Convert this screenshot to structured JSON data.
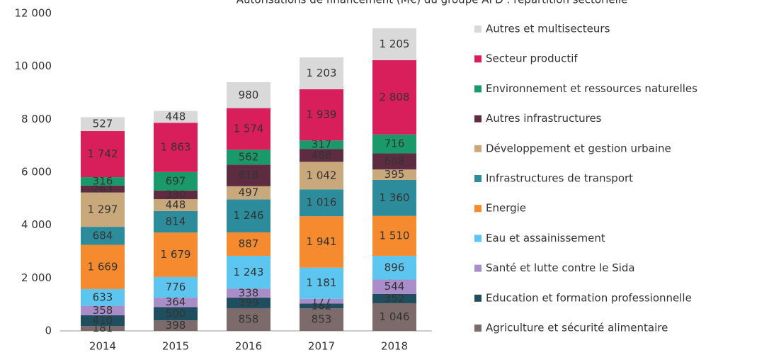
{
  "chart_data": {
    "type": "stacked_bar",
    "title": "Autorisations de financement (M€) du groupe AFD : répartition sectorielle",
    "categories": [
      "2014",
      "2015",
      "2016",
      "2017",
      "2018"
    ],
    "ylim": [
      0,
      12000
    ],
    "yticks": [
      0,
      {
        "value": 2000,
        "label": "2 000"
      },
      {
        "value": 4000,
        "label": "4 000"
      },
      {
        "value": 6000,
        "label": "6 000"
      },
      {
        "value": 8000,
        "label": "8 000"
      },
      {
        "value": 10000,
        "label": "10 000"
      },
      {
        "value": 12000,
        "label": "12 000"
      }
    ],
    "grid": false,
    "series": [
      {
        "name": "Agriculture et sécurité alimentaire",
        "color": "#7d6b6b",
        "values": [
          181,
          398,
          858,
          853,
          1046
        ],
        "value_labels": [
          "181",
          "398",
          "858",
          "853",
          "1 046"
        ]
      },
      {
        "name": "Education et formation professionnelle",
        "color": "#1f4e5f",
        "values": [
          410,
          500,
          399,
          182,
          352
        ],
        "value_labels": [
          "410",
          "500",
          "399",
          "182",
          "352"
        ]
      },
      {
        "name": "Santé et lutte contre le Sida",
        "color": "#a88dc8",
        "values": [
          358,
          364,
          338,
          177,
          544
        ],
        "value_labels": [
          "358",
          "364",
          "338",
          "177",
          "544"
        ]
      },
      {
        "name": "Eau et assainissement",
        "color": "#5cc6f0",
        "values": [
          633,
          776,
          1243,
          1181,
          896
        ],
        "value_labels": [
          "633",
          "776",
          "1 243",
          "1 181",
          "896"
        ]
      },
      {
        "name": "Energie",
        "color": "#f58a2e",
        "values": [
          1669,
          1679,
          887,
          1941,
          1510
        ],
        "value_labels": [
          "1 669",
          "1 679",
          "887",
          "1 941",
          "1 510"
        ]
      },
      {
        "name": "Infrastructures de transport",
        "color": "#2d8c9b",
        "values": [
          684,
          814,
          1246,
          1016,
          1360
        ],
        "value_labels": [
          "684",
          "814",
          "1 246",
          "1 016",
          "1 360"
        ]
      },
      {
        "name": "Développement et gestion urbaine",
        "color": "#c9a97b",
        "values": [
          1297,
          448,
          497,
          1042,
          395
        ],
        "value_labels": [
          "1 297",
          "448",
          "497",
          "1 042",
          "395"
        ]
      },
      {
        "name": "Autres infrastructures",
        "color": "#5e2c40",
        "values": [
          263,
          330,
          818,
          488,
          608
        ],
        "value_labels": [
          "263",
          "330",
          "818",
          "488",
          "608"
        ]
      },
      {
        "name": "Environnement et ressources naturelles",
        "color": "#1a9a6b",
        "values": [
          316,
          697,
          562,
          317,
          716
        ],
        "value_labels": [
          "316",
          "697",
          "562",
          "317",
          "716"
        ]
      },
      {
        "name": "Secteur productif",
        "color": "#d81e5b",
        "values": [
          1742,
          1863,
          1574,
          1939,
          2808
        ],
        "value_labels": [
          "1 742",
          "1 863",
          "1 574",
          "1 939",
          "2 808"
        ]
      },
      {
        "name": "Autres et multisecteurs",
        "color": "#d9d9d9",
        "values": [
          527,
          448,
          980,
          1203,
          1205
        ],
        "value_labels": [
          "527",
          "448",
          "980",
          "1 203",
          "1 205"
        ]
      }
    ]
  }
}
